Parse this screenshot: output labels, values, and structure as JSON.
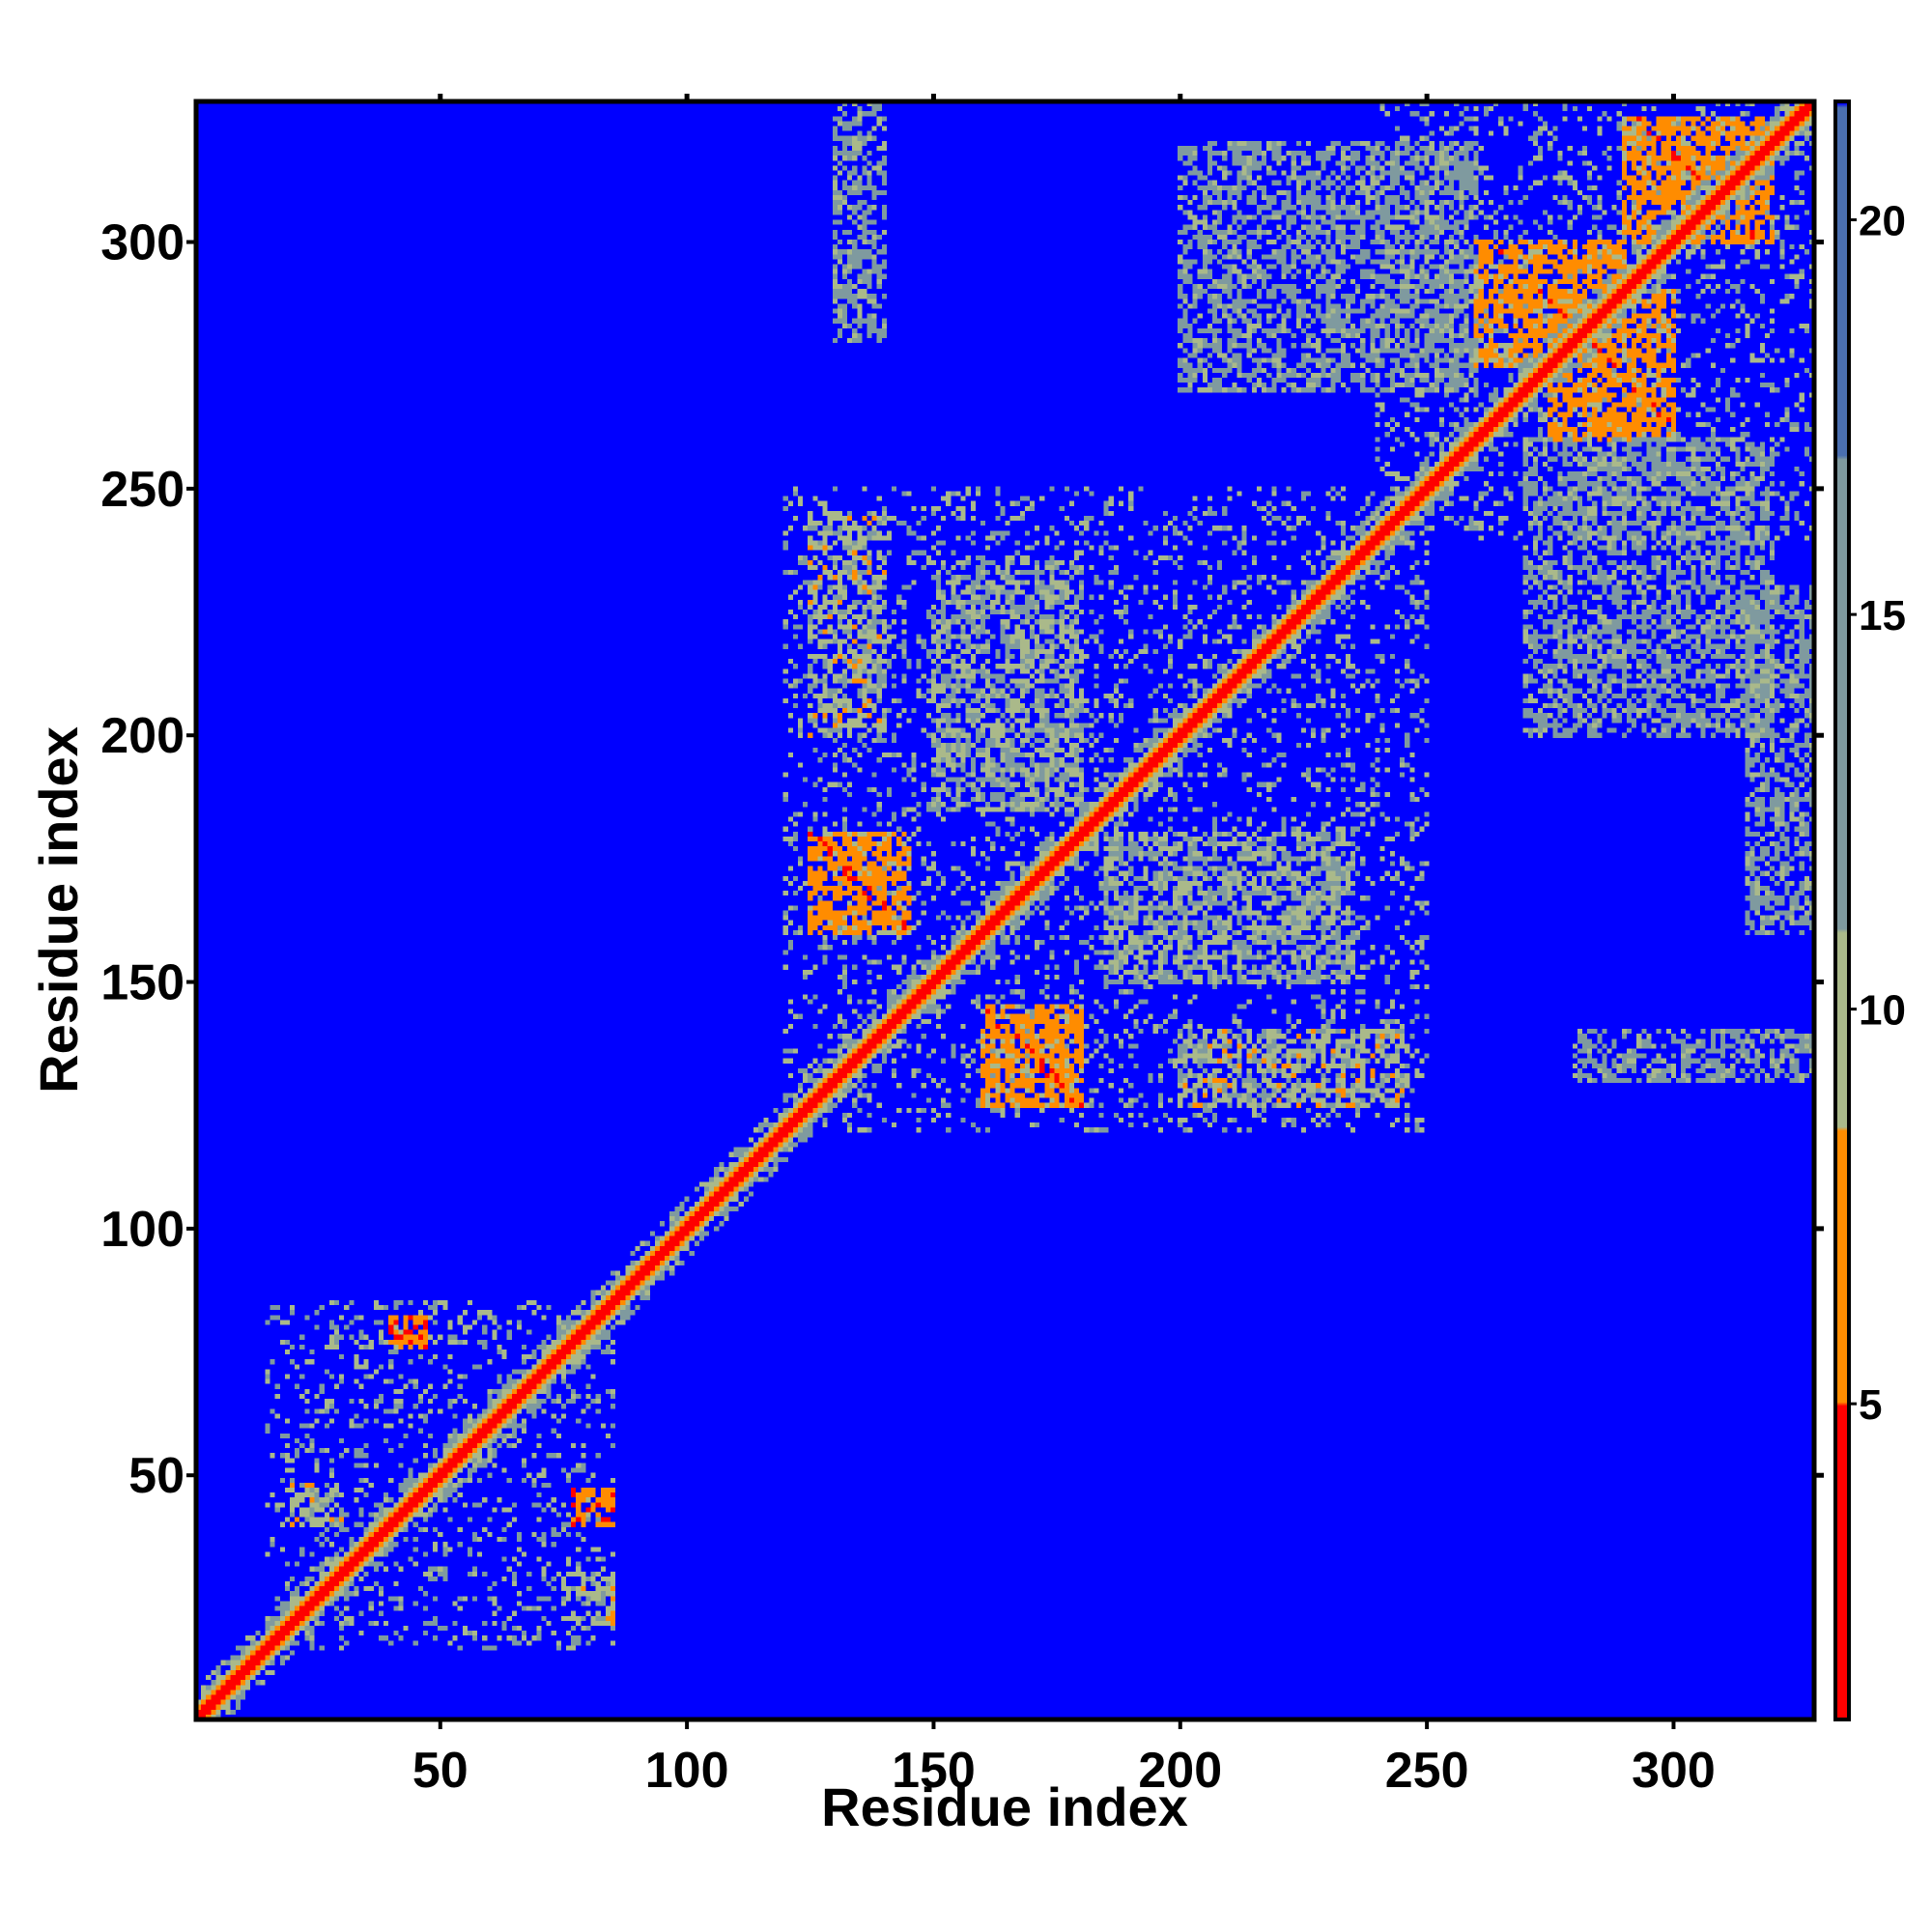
{
  "chart_data": {
    "type": "heatmap",
    "title": "",
    "xlabel": "Residue index",
    "ylabel": "Residue index",
    "xlim": [
      1,
      328
    ],
    "ylim": [
      1,
      328
    ],
    "x_ticks": [
      50,
      100,
      150,
      200,
      250,
      300
    ],
    "y_ticks": [
      50,
      100,
      150,
      200,
      250,
      300
    ],
    "colorbar": {
      "range": [
        1,
        21.5
      ],
      "ticks": [
        5,
        10,
        15,
        20
      ],
      "colors": [
        {
          "from": 1,
          "to": 5,
          "color": "#ff0000"
        },
        {
          "from": 5,
          "to": 8.5,
          "color": "#ff8c00"
        },
        {
          "from": 8.5,
          "to": 11,
          "color": "#aab98a"
        },
        {
          "from": 11,
          "to": 17,
          "color": "#7f9a9f"
        },
        {
          "from": 17,
          "to": 21.5,
          "color": "#4a6fb0"
        }
      ],
      "background_color": "#0000ff"
    },
    "diagonal": {
      "near_value": 2,
      "halo_width_residues": 3
    },
    "contact_regions": [
      {
        "x": [
          15,
          85
        ],
        "y": [
          15,
          85
        ],
        "type": "domain",
        "value": 11
      },
      {
        "x": [
          40,
          47
        ],
        "y": [
          76,
          82
        ],
        "type": "helix-pair",
        "value": 6
      },
      {
        "x": [
          77,
          85
        ],
        "y": [
          40,
          47
        ],
        "type": "helix-pair",
        "value": 6
      },
      {
        "x": [
          20,
          30
        ],
        "y": [
          40,
          48
        ],
        "type": "patch",
        "value": 10
      },
      {
        "x": [
          75,
          85
        ],
        "y": [
          20,
          30
        ],
        "type": "patch",
        "value": 10
      },
      {
        "x": [
          120,
          250
        ],
        "y": [
          120,
          250
        ],
        "type": "domain",
        "value": 11
      },
      {
        "x": [
          160,
          180
        ],
        "y": [
          125,
          145
        ],
        "type": "sheet",
        "value": 7
      },
      {
        "x": [
          125,
          145
        ],
        "y": [
          160,
          180
        ],
        "type": "sheet",
        "value": 7
      },
      {
        "x": [
          200,
          245
        ],
        "y": [
          125,
          140
        ],
        "type": "patch",
        "value": 10
      },
      {
        "x": [
          125,
          140
        ],
        "y": [
          200,
          245
        ],
        "type": "patch",
        "value": 10
      },
      {
        "x": [
          185,
          235
        ],
        "y": [
          150,
          180
        ],
        "type": "patch",
        "value": 11
      },
      {
        "x": [
          150,
          180
        ],
        "y": [
          185,
          235
        ],
        "type": "patch",
        "value": 11
      },
      {
        "x": [
          240,
          328
        ],
        "y": [
          240,
          328
        ],
        "type": "domain",
        "value": 11
      },
      {
        "x": [
          260,
          290
        ],
        "y": [
          275,
          300
        ],
        "type": "sheet",
        "value": 7
      },
      {
        "x": [
          275,
          300
        ],
        "y": [
          260,
          290
        ],
        "type": "sheet",
        "value": 7
      },
      {
        "x": [
          290,
          320
        ],
        "y": [
          300,
          325
        ],
        "type": "sheet",
        "value": 7
      },
      {
        "x": [
          200,
          260
        ],
        "y": [
          270,
          320
        ],
        "type": "patch",
        "value": 12
      },
      {
        "x": [
          270,
          320
        ],
        "y": [
          200,
          260
        ],
        "type": "patch",
        "value": 12
      },
      {
        "x": [
          130,
          140
        ],
        "y": [
          280,
          328
        ],
        "type": "patch",
        "value": 12
      },
      {
        "x": [
          280,
          328
        ],
        "y": [
          130,
          140
        ],
        "type": "patch",
        "value": 12
      },
      {
        "x": [
          315,
          328
        ],
        "y": [
          160,
          230
        ],
        "type": "patch",
        "value": 12
      }
    ]
  }
}
